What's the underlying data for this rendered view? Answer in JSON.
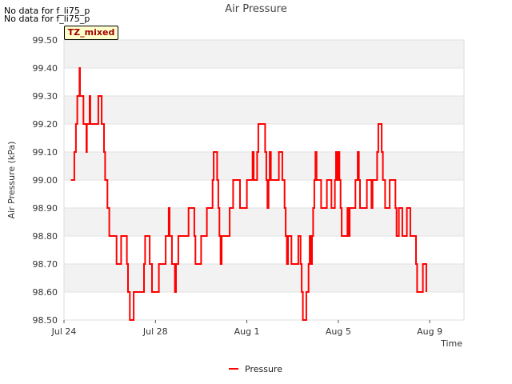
{
  "notices": [
    "No data for f_li75_p",
    "No data for f_li75_p"
  ],
  "badge": "TZ_mixed",
  "chart_data": {
    "type": "line",
    "title": "Air Pressure",
    "xlabel": "Time",
    "ylabel": "Air Pressure (kPa)",
    "ylim": [
      98.5,
      99.5
    ],
    "xlim_days": [
      0,
      17.5
    ],
    "yticks": [
      "98.50",
      "98.60",
      "98.70",
      "98.80",
      "98.90",
      "99.00",
      "99.10",
      "99.20",
      "99.30",
      "99.40",
      "99.50"
    ],
    "xticks": [
      {
        "day": 0,
        "label": "Jul 24"
      },
      {
        "day": 4,
        "label": "Jul 28"
      },
      {
        "day": 8,
        "label": "Aug 1"
      },
      {
        "day": 12,
        "label": "Aug 5"
      },
      {
        "day": 16,
        "label": "Aug 9"
      }
    ],
    "legend": {
      "position": "bottom-center",
      "label": "Pressure",
      "color": "#ff0000"
    },
    "series": [
      {
        "name": "Pressure",
        "color": "#ff0000",
        "points": [
          [
            0.3,
            99.0
          ],
          [
            0.4,
            99.0
          ],
          [
            0.45,
            99.1
          ],
          [
            0.52,
            99.2
          ],
          [
            0.58,
            99.3
          ],
          [
            0.65,
            99.3
          ],
          [
            0.68,
            99.4
          ],
          [
            0.7,
            99.3
          ],
          [
            0.8,
            99.3
          ],
          [
            0.85,
            99.2
          ],
          [
            0.95,
            99.2
          ],
          [
            0.98,
            99.1
          ],
          [
            1.0,
            99.2
          ],
          [
            1.08,
            99.2
          ],
          [
            1.12,
            99.3
          ],
          [
            1.15,
            99.2
          ],
          [
            1.3,
            99.2
          ],
          [
            1.45,
            99.2
          ],
          [
            1.5,
            99.3
          ],
          [
            1.6,
            99.3
          ],
          [
            1.65,
            99.2
          ],
          [
            1.75,
            99.1
          ],
          [
            1.8,
            99.0
          ],
          [
            1.9,
            98.9
          ],
          [
            1.98,
            98.8
          ],
          [
            2.2,
            98.8
          ],
          [
            2.3,
            98.7
          ],
          [
            2.45,
            98.7
          ],
          [
            2.5,
            98.8
          ],
          [
            2.7,
            98.8
          ],
          [
            2.75,
            98.7
          ],
          [
            2.8,
            98.6
          ],
          [
            2.88,
            98.5
          ],
          [
            3.0,
            98.5
          ],
          [
            3.05,
            98.6
          ],
          [
            3.2,
            98.6
          ],
          [
            3.45,
            98.6
          ],
          [
            3.5,
            98.7
          ],
          [
            3.55,
            98.8
          ],
          [
            3.7,
            98.8
          ],
          [
            3.75,
            98.7
          ],
          [
            3.85,
            98.6
          ],
          [
            4.0,
            98.6
          ],
          [
            4.1,
            98.6
          ],
          [
            4.15,
            98.7
          ],
          [
            4.4,
            98.7
          ],
          [
            4.45,
            98.8
          ],
          [
            4.55,
            98.8
          ],
          [
            4.58,
            98.9
          ],
          [
            4.62,
            98.8
          ],
          [
            4.68,
            98.8
          ],
          [
            4.72,
            98.7
          ],
          [
            4.8,
            98.7
          ],
          [
            4.85,
            98.6
          ],
          [
            4.9,
            98.7
          ],
          [
            5.0,
            98.8
          ],
          [
            5.4,
            98.8
          ],
          [
            5.45,
            98.9
          ],
          [
            5.65,
            98.9
          ],
          [
            5.7,
            98.8
          ],
          [
            5.75,
            98.7
          ],
          [
            5.95,
            98.7
          ],
          [
            6.0,
            98.8
          ],
          [
            6.2,
            98.8
          ],
          [
            6.25,
            98.9
          ],
          [
            6.45,
            98.9
          ],
          [
            6.5,
            99.0
          ],
          [
            6.55,
            99.1
          ],
          [
            6.65,
            99.1
          ],
          [
            6.7,
            99.0
          ],
          [
            6.75,
            98.9
          ],
          [
            6.8,
            98.8
          ],
          [
            6.85,
            98.7
          ],
          [
            6.9,
            98.8
          ],
          [
            7.0,
            98.8
          ],
          [
            7.2,
            98.8
          ],
          [
            7.25,
            98.9
          ],
          [
            7.35,
            98.9
          ],
          [
            7.4,
            99.0
          ],
          [
            7.65,
            99.0
          ],
          [
            7.7,
            98.9
          ],
          [
            7.95,
            98.9
          ],
          [
            8.0,
            99.0
          ],
          [
            8.2,
            99.0
          ],
          [
            8.25,
            99.1
          ],
          [
            8.3,
            99.0
          ],
          [
            8.4,
            99.0
          ],
          [
            8.45,
            99.1
          ],
          [
            8.5,
            99.2
          ],
          [
            8.75,
            99.2
          ],
          [
            8.8,
            99.1
          ],
          [
            8.85,
            99.0
          ],
          [
            8.9,
            98.9
          ],
          [
            8.95,
            99.0
          ],
          [
            9.0,
            99.1
          ],
          [
            9.05,
            99.0
          ],
          [
            9.35,
            99.0
          ],
          [
            9.4,
            99.1
          ],
          [
            9.5,
            99.1
          ],
          [
            9.55,
            99.0
          ],
          [
            9.65,
            98.9
          ],
          [
            9.7,
            98.8
          ],
          [
            9.75,
            98.7
          ],
          [
            9.8,
            98.8
          ],
          [
            9.9,
            98.8
          ],
          [
            9.95,
            98.7
          ],
          [
            10.2,
            98.7
          ],
          [
            10.25,
            98.8
          ],
          [
            10.3,
            98.8
          ],
          [
            10.35,
            98.7
          ],
          [
            10.4,
            98.6
          ],
          [
            10.45,
            98.5
          ],
          [
            10.55,
            98.5
          ],
          [
            10.6,
            98.6
          ],
          [
            10.7,
            98.7
          ],
          [
            10.75,
            98.8
          ],
          [
            10.8,
            98.7
          ],
          [
            10.85,
            98.8
          ],
          [
            10.9,
            98.9
          ],
          [
            10.95,
            99.0
          ],
          [
            11.0,
            99.1
          ],
          [
            11.05,
            99.0
          ],
          [
            11.2,
            99.0
          ],
          [
            11.25,
            98.9
          ],
          [
            11.45,
            98.9
          ],
          [
            11.5,
            99.0
          ],
          [
            11.65,
            99.0
          ],
          [
            11.7,
            98.9
          ],
          [
            11.8,
            98.9
          ],
          [
            11.85,
            99.0
          ],
          [
            11.9,
            99.1
          ],
          [
            11.95,
            99.0
          ],
          [
            12.0,
            99.1
          ],
          [
            12.05,
            99.0
          ],
          [
            12.1,
            98.9
          ],
          [
            12.15,
            98.8
          ],
          [
            12.35,
            98.8
          ],
          [
            12.4,
            98.9
          ],
          [
            12.45,
            98.8
          ],
          [
            12.5,
            98.9
          ],
          [
            12.7,
            98.9
          ],
          [
            12.75,
            99.0
          ],
          [
            12.85,
            99.1
          ],
          [
            12.9,
            99.0
          ],
          [
            12.95,
            98.9
          ],
          [
            13.2,
            98.9
          ],
          [
            13.25,
            99.0
          ],
          [
            13.4,
            99.0
          ],
          [
            13.45,
            98.9
          ],
          [
            13.5,
            99.0
          ],
          [
            13.65,
            99.0
          ],
          [
            13.7,
            99.1
          ],
          [
            13.75,
            99.2
          ],
          [
            13.85,
            99.2
          ],
          [
            13.9,
            99.1
          ],
          [
            13.95,
            99.0
          ],
          [
            14.05,
            98.9
          ],
          [
            14.2,
            98.9
          ],
          [
            14.25,
            99.0
          ],
          [
            14.45,
            99.0
          ],
          [
            14.5,
            98.9
          ],
          [
            14.55,
            98.8
          ],
          [
            14.65,
            98.9
          ],
          [
            14.75,
            98.9
          ],
          [
            14.8,
            98.8
          ],
          [
            14.95,
            98.8
          ],
          [
            15.0,
            98.9
          ],
          [
            15.1,
            98.9
          ],
          [
            15.15,
            98.8
          ],
          [
            15.35,
            98.8
          ],
          [
            15.4,
            98.7
          ],
          [
            15.45,
            98.6
          ],
          [
            15.65,
            98.6
          ],
          [
            15.7,
            98.7
          ],
          [
            15.8,
            98.7
          ],
          [
            15.85,
            98.6
          ]
        ]
      }
    ]
  }
}
